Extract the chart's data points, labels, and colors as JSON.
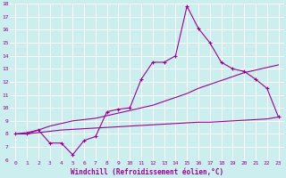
{
  "xlabel": "Windchill (Refroidissement éolien,°C)",
  "bg_color": "#cceeee",
  "grid_color": "#ffffff",
  "line_color": "#990099",
  "xlim": [
    -0.5,
    23.5
  ],
  "ylim": [
    6,
    18
  ],
  "xticks": [
    0,
    1,
    2,
    3,
    4,
    5,
    6,
    7,
    8,
    9,
    10,
    11,
    12,
    13,
    14,
    15,
    16,
    17,
    18,
    19,
    20,
    21,
    22,
    23
  ],
  "yticks": [
    6,
    7,
    8,
    9,
    10,
    11,
    12,
    13,
    14,
    15,
    16,
    17,
    18
  ],
  "line1_x": [
    0,
    1,
    2,
    3,
    4,
    5,
    6,
    7,
    8,
    9,
    10,
    11,
    12,
    13,
    14,
    15,
    16,
    17,
    18,
    19,
    20,
    21,
    22,
    23
  ],
  "line1_y": [
    8.0,
    8.0,
    8.3,
    7.3,
    7.3,
    6.4,
    7.5,
    7.8,
    9.7,
    9.9,
    10.0,
    12.2,
    13.5,
    13.5,
    14.0,
    17.8,
    16.1,
    15.0,
    13.5,
    13.0,
    12.8,
    12.2,
    11.5,
    9.3
  ],
  "line2_x": [
    0,
    1,
    2,
    3,
    4,
    5,
    6,
    7,
    8,
    9,
    10,
    11,
    12,
    13,
    14,
    15,
    16,
    17,
    18,
    19,
    20,
    21,
    22,
    23
  ],
  "line2_y": [
    8.0,
    8.1,
    8.3,
    8.6,
    8.8,
    9.0,
    9.1,
    9.2,
    9.4,
    9.6,
    9.8,
    10.0,
    10.2,
    10.5,
    10.8,
    11.1,
    11.5,
    11.8,
    12.1,
    12.4,
    12.7,
    12.9,
    13.1,
    13.3
  ],
  "line3_x": [
    0,
    1,
    2,
    3,
    4,
    5,
    6,
    7,
    8,
    9,
    10,
    11,
    12,
    13,
    14,
    15,
    16,
    17,
    18,
    19,
    20,
    21,
    22,
    23
  ],
  "line3_y": [
    8.0,
    8.0,
    8.1,
    8.2,
    8.3,
    8.35,
    8.4,
    8.45,
    8.5,
    8.55,
    8.6,
    8.65,
    8.7,
    8.75,
    8.8,
    8.85,
    8.9,
    8.9,
    8.95,
    9.0,
    9.05,
    9.1,
    9.15,
    9.3
  ]
}
